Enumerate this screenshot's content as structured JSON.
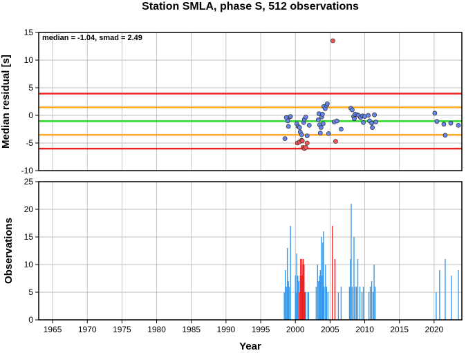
{
  "chart_data": [
    {
      "type": "scatter",
      "title": "Station SMLA, phase S, 512 observations",
      "xlabel": "",
      "ylabel": "Median residual [s]",
      "annotation": "median = -1.04, smad = 2.49",
      "xlim": [
        1963,
        2024
      ],
      "ylim": [
        -10,
        15
      ],
      "yticks": [
        "15",
        "10",
        "5",
        "0",
        "-5",
        "-10"
      ],
      "grid": true,
      "reference_lines": [
        {
          "y": 3.94,
          "color": "#ee2222"
        },
        {
          "y": 1.45,
          "color": "#ffaa22"
        },
        {
          "y": -1.04,
          "color": "#22dd22"
        },
        {
          "y": -3.53,
          "color": "#ffaa22"
        },
        {
          "y": -6.02,
          "color": "#ee2222"
        }
      ],
      "series": [
        {
          "color": "#6688ee",
          "points": [
            [
              1998.5,
              -4.2
            ],
            [
              1998.7,
              -0.4
            ],
            [
              1998.9,
              -1.0
            ],
            [
              1999.0,
              -2.0
            ],
            [
              1999.2,
              -0.3
            ],
            [
              1999.3,
              -0.2
            ],
            [
              2000.2,
              -1.5
            ],
            [
              2000.4,
              -2.0
            ],
            [
              2000.6,
              -2.2
            ],
            [
              2000.7,
              -3.0
            ],
            [
              2000.9,
              -3.5
            ],
            [
              2001.2,
              -1.3
            ],
            [
              2001.3,
              -0.7
            ],
            [
              2001.5,
              -0.3
            ],
            [
              2001.7,
              -3.7
            ],
            [
              2002.0,
              -1.8
            ],
            [
              2003.3,
              -0.8
            ],
            [
              2003.4,
              0.3
            ],
            [
              2003.5,
              -1.7
            ],
            [
              2003.6,
              -3.2
            ],
            [
              2003.7,
              -2.2
            ],
            [
              2003.8,
              -0.3
            ],
            [
              2003.9,
              0.2
            ],
            [
              2004.0,
              -1.5
            ],
            [
              2004.1,
              1.6
            ],
            [
              2004.3,
              1.2
            ],
            [
              2004.5,
              1.8
            ],
            [
              2004.6,
              2.1
            ],
            [
              2004.8,
              -3.3
            ],
            [
              2005.6,
              -1.2
            ],
            [
              2006.0,
              -1.0
            ],
            [
              2006.6,
              -2.5
            ],
            [
              2008.0,
              1.3
            ],
            [
              2008.2,
              1.0
            ],
            [
              2008.4,
              -0.2
            ],
            [
              2008.5,
              -0.6
            ],
            [
              2008.6,
              0.2
            ],
            [
              2008.9,
              0.1
            ],
            [
              2009.1,
              0.0
            ],
            [
              2009.4,
              -0.4
            ],
            [
              2009.7,
              -0.1
            ],
            [
              2009.8,
              -1.3
            ],
            [
              2010.0,
              -0.2
            ],
            [
              2010.5,
              0.0
            ],
            [
              2010.7,
              -1.0
            ],
            [
              2011.0,
              -1.4
            ],
            [
              2011.1,
              -2.2
            ],
            [
              2011.4,
              0.1
            ],
            [
              2011.6,
              -1.2
            ],
            [
              2020.1,
              0.4
            ],
            [
              2020.4,
              -1.1
            ],
            [
              2021.4,
              -1.6
            ],
            [
              2021.6,
              -3.6
            ],
            [
              2022.4,
              -1.4
            ],
            [
              2023.5,
              -1.8
            ]
          ]
        },
        {
          "color": "#ff5555",
          "points": [
            [
              2000.3,
              -5.0
            ],
            [
              2000.6,
              -4.8
            ],
            [
              2000.9,
              -4.5
            ],
            [
              2001.0,
              -4.6
            ],
            [
              2001.1,
              -5.8
            ],
            [
              2001.3,
              -6.0
            ],
            [
              2001.5,
              -5.8
            ],
            [
              2001.7,
              -5.0
            ],
            [
              2005.4,
              13.5
            ],
            [
              2005.8,
              -4.7
            ]
          ]
        }
      ]
    },
    {
      "type": "bar",
      "xlabel": "Year",
      "ylabel": "Observations",
      "xlim": [
        1963,
        2024
      ],
      "ylim": [
        0,
        25
      ],
      "xticks": [
        "1965",
        "1970",
        "1975",
        "1980",
        "1985",
        "1990",
        "1995",
        "2000",
        "2005",
        "2010",
        "2015",
        "2020"
      ],
      "yticks": [
        "0",
        "5",
        "10",
        "15",
        "20",
        "25"
      ],
      "grid": true,
      "series": [
        {
          "color": "#3399ee",
          "bars": [
            [
              1998.4,
              5
            ],
            [
              1998.55,
              9
            ],
            [
              1998.7,
              6
            ],
            [
              1998.85,
              13
            ],
            [
              1999.0,
              7
            ],
            [
              1999.1,
              6
            ],
            [
              1999.3,
              17
            ],
            [
              2000.0,
              8
            ],
            [
              2000.1,
              5
            ],
            [
              2000.2,
              12
            ],
            [
              2000.35,
              8
            ],
            [
              2000.5,
              7
            ],
            [
              2000.7,
              8
            ],
            [
              2000.9,
              7
            ],
            [
              2001.1,
              10
            ],
            [
              2001.5,
              5
            ],
            [
              2001.8,
              5
            ],
            [
              2001.9,
              5
            ],
            [
              2003.0,
              6
            ],
            [
              2003.2,
              10
            ],
            [
              2003.35,
              7
            ],
            [
              2003.5,
              8
            ],
            [
              2003.6,
              9
            ],
            [
              2003.75,
              15
            ],
            [
              2003.85,
              8
            ],
            [
              2003.95,
              14
            ],
            [
              2004.05,
              16
            ],
            [
              2004.15,
              6
            ],
            [
              2004.35,
              10
            ],
            [
              2004.5,
              6
            ],
            [
              2004.7,
              5
            ],
            [
              2006.2,
              5
            ],
            [
              2006.6,
              6
            ],
            [
              2007.8,
              6
            ],
            [
              2007.95,
              11
            ],
            [
              2008.05,
              21
            ],
            [
              2008.2,
              6
            ],
            [
              2008.45,
              15
            ],
            [
              2008.6,
              6
            ],
            [
              2008.8,
              6
            ],
            [
              2009.0,
              11
            ],
            [
              2009.3,
              6
            ],
            [
              2009.6,
              5
            ],
            [
              2009.8,
              6
            ],
            [
              2010.6,
              5
            ],
            [
              2010.8,
              6
            ],
            [
              2011.0,
              7
            ],
            [
              2011.2,
              5
            ],
            [
              2011.35,
              10
            ],
            [
              2011.5,
              6
            ],
            [
              2020.3,
              5
            ],
            [
              2020.8,
              9
            ],
            [
              2021.6,
              11
            ],
            [
              2022.5,
              8
            ],
            [
              2023.5,
              9
            ]
          ]
        },
        {
          "color": "#ee2222",
          "bars": [
            [
              2000.55,
              5
            ],
            [
              2000.75,
              11
            ],
            [
              2000.85,
              8
            ],
            [
              2000.95,
              11
            ],
            [
              2001.05,
              8
            ],
            [
              2001.15,
              11
            ],
            [
              2001.25,
              10
            ],
            [
              2001.35,
              5
            ],
            [
              2005.35,
              17
            ],
            [
              2005.7,
              11
            ]
          ]
        }
      ]
    }
  ]
}
